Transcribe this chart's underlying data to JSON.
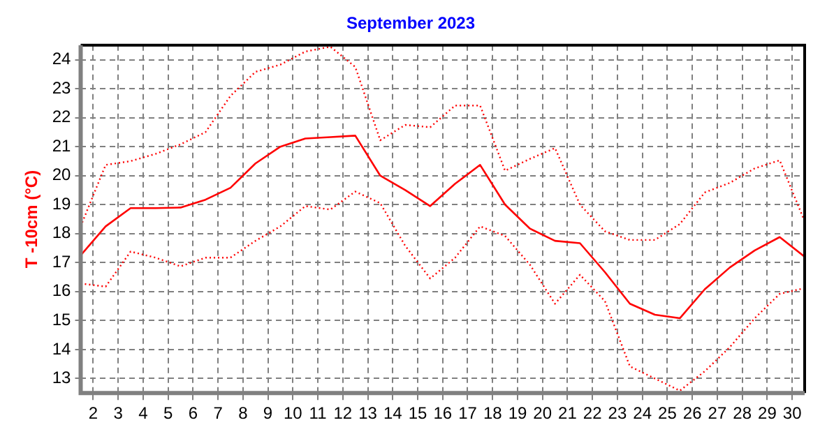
{
  "chart_data": {
    "type": "line",
    "title": "September 2023",
    "ylabel": "T -10cm (°C)",
    "x": [
      1.5,
      2.5,
      3.5,
      4.5,
      5.5,
      6.5,
      7.5,
      8.5,
      9.5,
      10.5,
      11.5,
      12.5,
      13.5,
      14.5,
      15.5,
      16.5,
      17.5,
      18.5,
      19.5,
      20.5,
      21.5,
      22.5,
      23.5,
      24.5,
      25.5,
      26.5,
      27.5,
      28.5,
      29.5,
      30.5
    ],
    "series": [
      {
        "color": "#ff0000",
        "line_style": "dotted",
        "values": [
          18.25,
          20.37,
          20.5,
          20.75,
          21.08,
          21.5,
          22.75,
          23.58,
          23.83,
          24.28,
          24.45,
          23.75,
          21.22,
          21.75,
          21.67,
          22.42,
          22.42,
          20.17,
          20.58,
          20.95,
          19.0,
          18.08,
          17.78,
          17.78,
          18.33,
          19.42,
          19.75,
          20.25,
          20.53,
          18.42
        ]
      },
      {
        "color": "#ff0000",
        "line_style": "solid",
        "values": [
          17.25,
          18.25,
          18.88,
          18.88,
          18.9,
          19.17,
          19.58,
          20.42,
          21.0,
          21.28,
          21.33,
          21.38,
          20.0,
          19.5,
          18.95,
          19.72,
          20.37,
          19.0,
          18.17,
          17.75,
          17.67,
          16.67,
          15.58,
          15.2,
          15.08,
          16.08,
          16.83,
          17.42,
          17.88,
          17.2
        ]
      },
      {
        "color": "#ff0000",
        "line_style": "dotted",
        "values": [
          16.28,
          16.17,
          17.38,
          17.17,
          16.87,
          17.17,
          17.17,
          17.75,
          18.25,
          18.95,
          18.83,
          19.45,
          19.05,
          17.58,
          16.45,
          17.17,
          18.25,
          17.92,
          16.92,
          15.58,
          16.58,
          15.67,
          13.42,
          13.0,
          12.58,
          13.25,
          14.08,
          15.08,
          15.92,
          16.12
        ]
      }
    ],
    "xlim": [
      1.5,
      30.5
    ],
    "xticks": [
      2,
      3,
      4,
      5,
      6,
      7,
      8,
      9,
      10,
      11,
      12,
      13,
      14,
      15,
      16,
      17,
      18,
      19,
      20,
      21,
      22,
      23,
      24,
      25,
      26,
      27,
      28,
      29,
      30
    ],
    "ylim": [
      12.5,
      24.5
    ],
    "yticks": [
      13,
      14,
      15,
      16,
      17,
      18,
      19,
      20,
      21,
      22,
      23,
      24
    ],
    "grid": true,
    "legend": false,
    "marker": "none"
  }
}
